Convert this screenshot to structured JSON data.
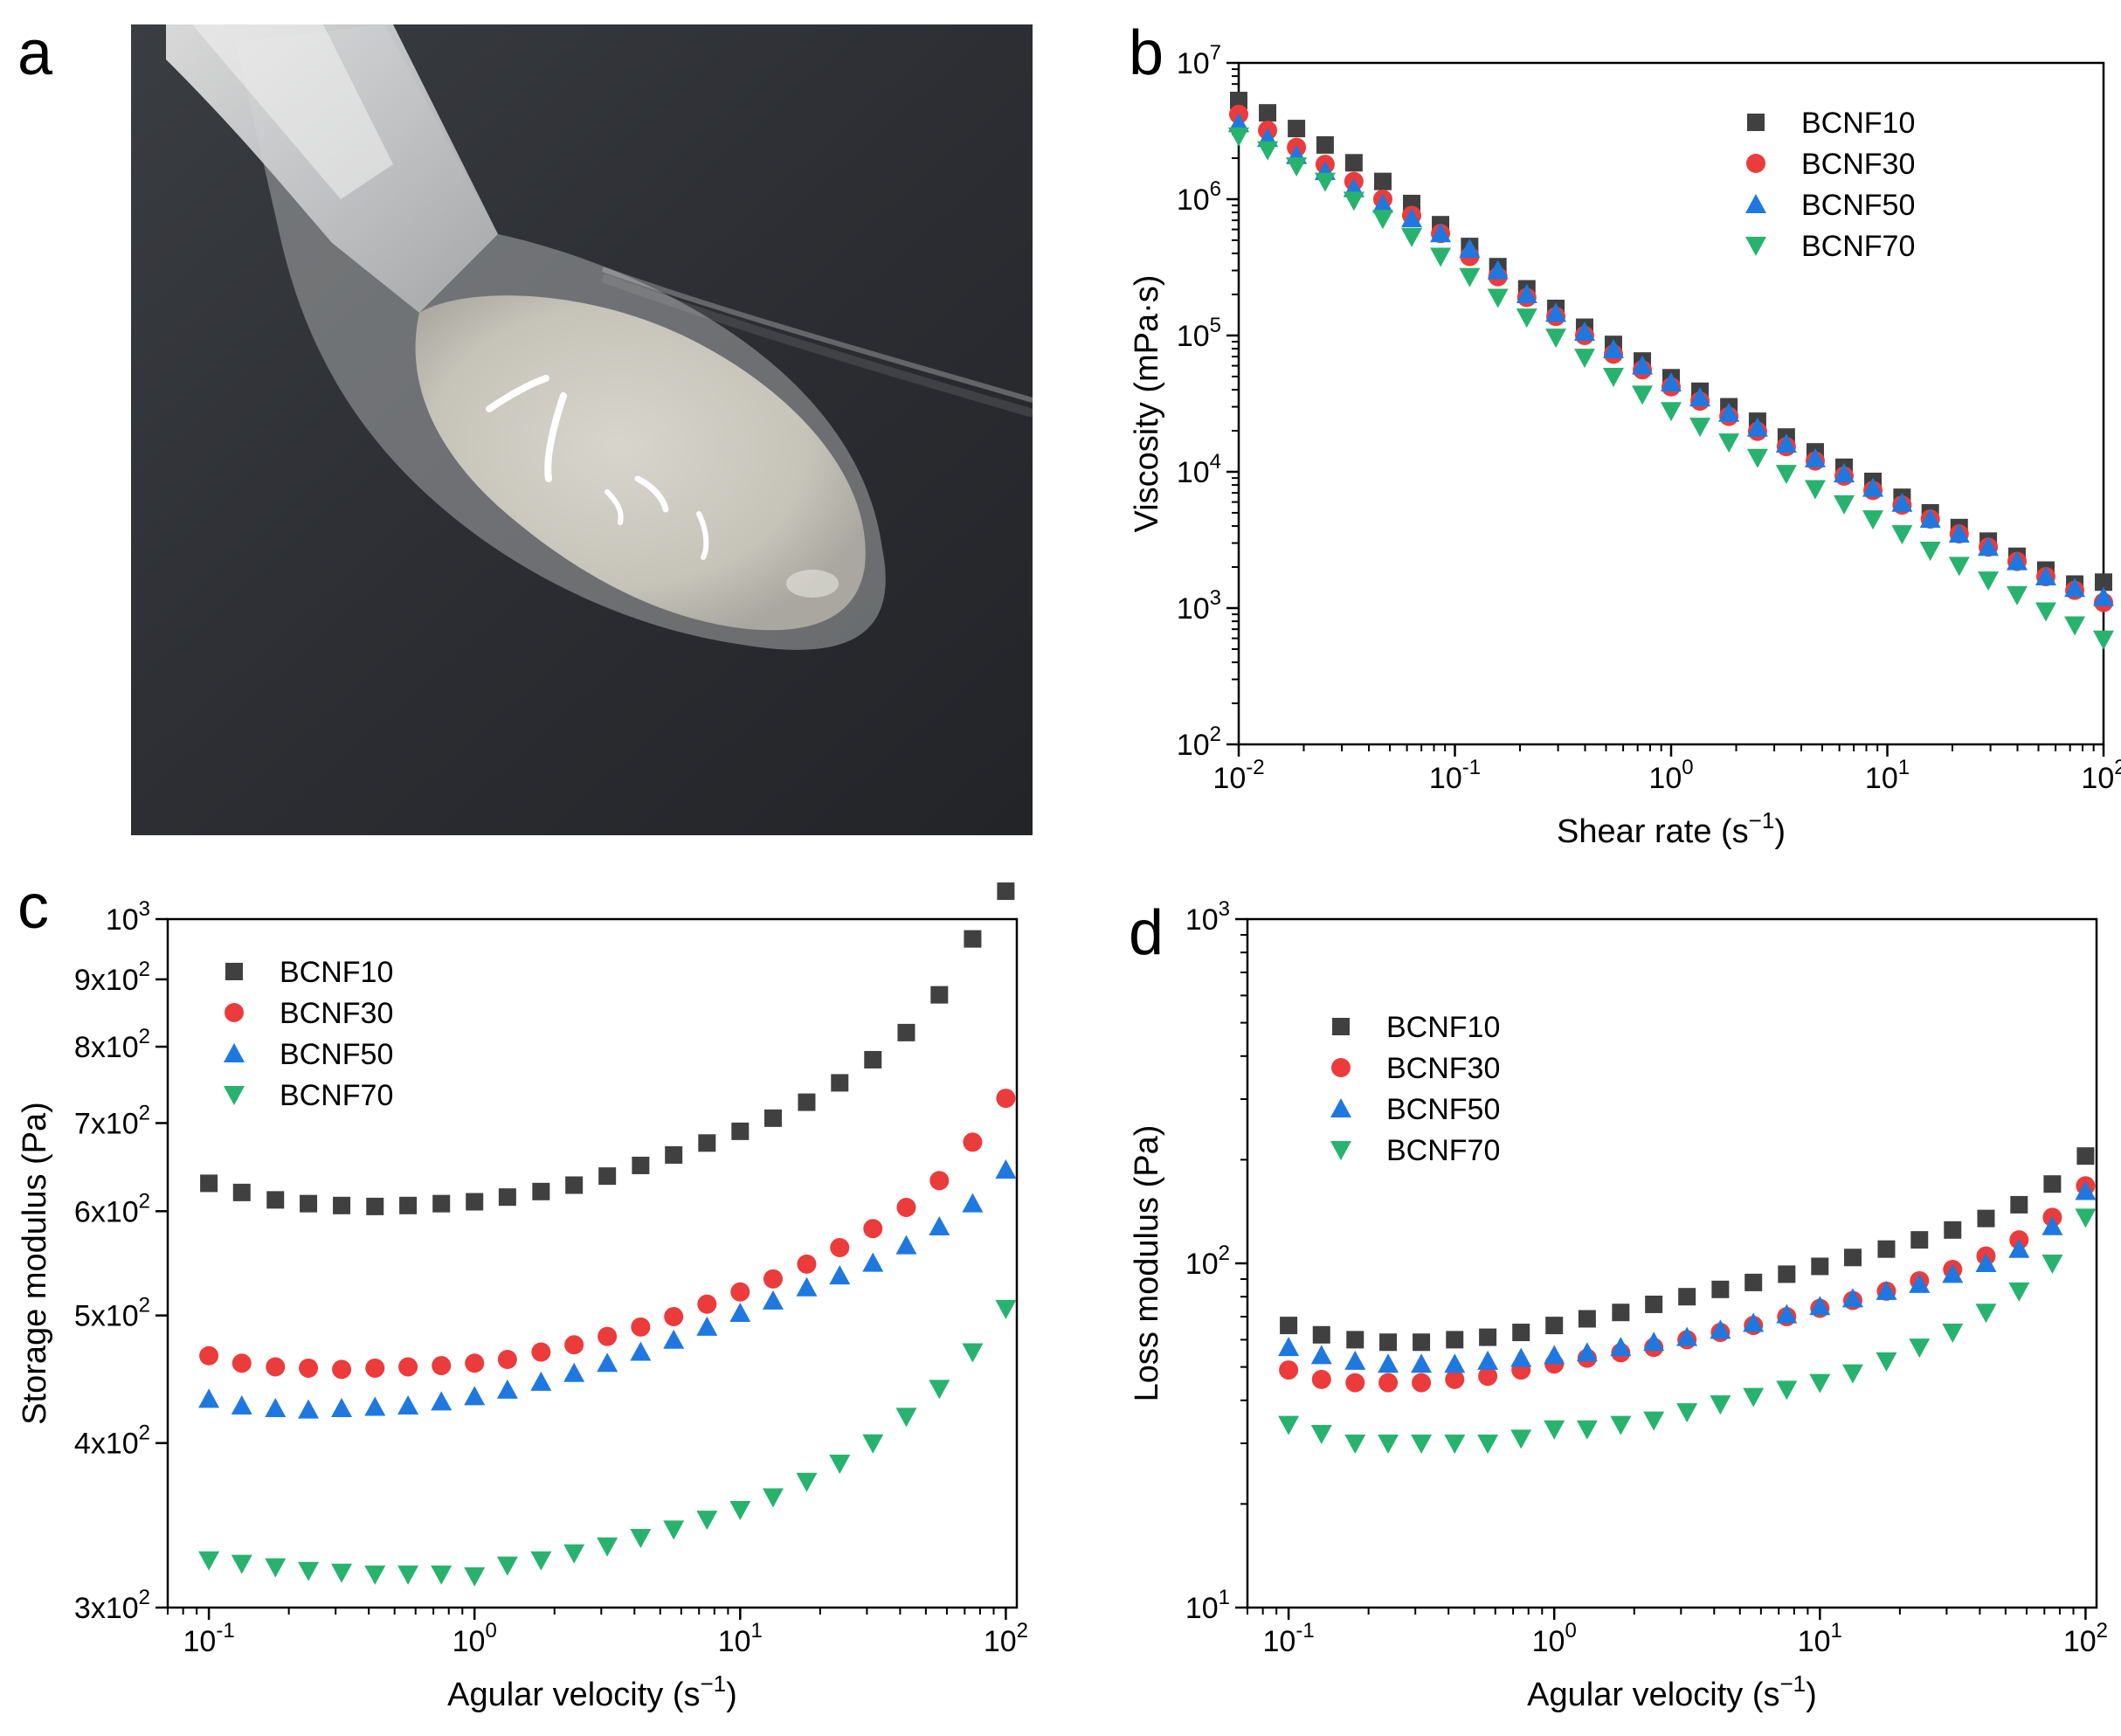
{
  "panels": {
    "a": {
      "letter": "a",
      "description_icon": "gel-on-spatula-photo"
    },
    "b": {
      "letter": "b"
    },
    "c": {
      "letter": "c"
    },
    "d": {
      "letter": "d"
    }
  },
  "colors": {
    "BCNF10": "#404040",
    "BCNF30": "#ec3b3b",
    "BCNF50": "#1f78e0",
    "BCNF70": "#27b36e",
    "photo_bg": "#2b2d31",
    "gel": "#cfccc2"
  },
  "markers": {
    "BCNF10": "square",
    "BCNF30": "circle",
    "BCNF50": "triangle-up",
    "BCNF70": "triangle-down"
  },
  "chart_data": [
    {
      "id": "b",
      "type": "scatter",
      "xscale": "log",
      "yscale": "log",
      "xlabel": "Shear rate (s",
      "xlabel_sup": "−1",
      "xlabel_end": ")",
      "ylabel": "Viscosity (mPa·s)",
      "xlim": [
        0.01,
        100
      ],
      "ylim": [
        100,
        10000000
      ],
      "xticks": [
        {
          "value": 0.01,
          "base": "10",
          "exp": "-2"
        },
        {
          "value": 0.1,
          "base": "10",
          "exp": "-1"
        },
        {
          "value": 1,
          "base": "10",
          "exp": "0"
        },
        {
          "value": 10,
          "base": "10",
          "exp": "1"
        },
        {
          "value": 100,
          "base": "10",
          "exp": "2"
        }
      ],
      "yticks": [
        {
          "value": 100,
          "base": "10",
          "exp": "2"
        },
        {
          "value": 1000,
          "base": "10",
          "exp": "3"
        },
        {
          "value": 10000,
          "base": "10",
          "exp": "4"
        },
        {
          "value": 100000,
          "base": "10",
          "exp": "5"
        },
        {
          "value": 1000000,
          "base": "10",
          "exp": "6"
        },
        {
          "value": 10000000,
          "base": "10",
          "exp": "7"
        }
      ],
      "legend": {
        "position": "top-right"
      },
      "x": [
        0.01,
        0.0136,
        0.0185,
        0.0251,
        0.0341,
        0.0464,
        0.0631,
        0.0858,
        0.117,
        0.158,
        0.215,
        0.293,
        0.398,
        0.541,
        0.736,
        1.0,
        1.36,
        1.85,
        2.51,
        3.41,
        4.64,
        6.31,
        8.58,
        11.7,
        15.8,
        21.5,
        29.3,
        39.8,
        54.1,
        73.6,
        100
      ],
      "series": [
        {
          "name": "BCNF10",
          "values": [
            5300000,
            4300000,
            3300000,
            2500000,
            1850000,
            1350000,
            930000,
            650000,
            450000,
            320000,
            220000,
            158000,
            115000,
            86000,
            65000,
            49000,
            39000,
            30000,
            23500,
            18000,
            14000,
            10800,
            8500,
            6500,
            5000,
            3900,
            3100,
            2400,
            1900,
            1500,
            1550
          ]
        },
        {
          "name": "BCNF30",
          "values": [
            4200000,
            3200000,
            2400000,
            1800000,
            1350000,
            1000000,
            760000,
            560000,
            380000,
            270000,
            190000,
            138000,
            100000,
            73000,
            56000,
            42000,
            33000,
            25500,
            19800,
            15300,
            12000,
            9300,
            7300,
            5700,
            4500,
            3500,
            2800,
            2200,
            1700,
            1350,
            1100
          ]
        },
        {
          "name": "BCNF50",
          "values": [
            3600000,
            2800000,
            2100000,
            1600000,
            1200000,
            920000,
            720000,
            560000,
            430000,
            300000,
            200000,
            146000,
            106000,
            79000,
            60000,
            45000,
            35000,
            27000,
            21000,
            16000,
            12500,
            9700,
            7600,
            5900,
            4500,
            3500,
            2800,
            2200,
            1700,
            1400,
            1200
          ]
        },
        {
          "name": "BCNF70",
          "values": [
            2900000,
            2300000,
            1750000,
            1350000,
            980000,
            720000,
            530000,
            380000,
            270000,
            190000,
            136000,
            97000,
            69000,
            50000,
            37000,
            28000,
            21500,
            16500,
            12700,
            9700,
            7500,
            5800,
            4500,
            3500,
            2650,
            2050,
            1600,
            1250,
            950,
            750,
            590
          ]
        }
      ]
    },
    {
      "id": "c",
      "type": "scatter",
      "xscale": "log",
      "yscale": "log",
      "xlabel": "Agular velocity (s",
      "xlabel_sup": "−1",
      "xlabel_end": ")",
      "ylabel": "Storage modulus (Pa)",
      "xlim": [
        0.07,
        110
      ],
      "ylim": [
        300,
        1000
      ],
      "xticks": [
        {
          "value": 0.1,
          "base": "10",
          "exp": "-1"
        },
        {
          "value": 1,
          "base": "10",
          "exp": "0"
        },
        {
          "value": 10,
          "base": "10",
          "exp": "1"
        },
        {
          "value": 100,
          "base": "10",
          "exp": "2"
        }
      ],
      "yticks": [
        {
          "value": 300,
          "base": "3x10",
          "exp": "2"
        },
        {
          "value": 400,
          "base": "4x10",
          "exp": "2"
        },
        {
          "value": 500,
          "base": "5x10",
          "exp": "2"
        },
        {
          "value": 600,
          "base": "6x10",
          "exp": "2"
        },
        {
          "value": 700,
          "base": "7x10",
          "exp": "2"
        },
        {
          "value": 800,
          "base": "8x10",
          "exp": "2"
        },
        {
          "value": 900,
          "base": "9x10",
          "exp": "2"
        },
        {
          "value": 1000,
          "base": "10",
          "exp": "3"
        }
      ],
      "legend": {
        "position": "top-left"
      },
      "x": [
        0.1,
        0.133,
        0.178,
        0.237,
        0.316,
        0.422,
        0.562,
        0.75,
        1.0,
        1.33,
        1.78,
        2.37,
        3.16,
        4.22,
        5.62,
        7.5,
        10,
        13.3,
        17.8,
        23.7,
        31.6,
        42.2,
        56.2,
        75,
        100
      ],
      "series": [
        {
          "name": "BCNF10",
          "values": [
            630,
            620,
            612,
            608,
            606,
            605,
            606,
            608,
            610,
            615,
            621,
            628,
            638,
            650,
            662,
            676,
            690,
            706,
            726,
            751,
            782,
            820,
            876,
            966,
            1050
          ]
        },
        {
          "name": "BCNF30",
          "values": [
            466,
            460,
            457,
            456,
            455,
            456,
            457,
            458,
            460,
            463,
            469,
            475,
            482,
            490,
            499,
            510,
            521,
            533,
            547,
            563,
            582,
            604,
            633,
            677,
            731
          ]
        },
        {
          "name": "BCNF50",
          "values": [
            432,
            427,
            425,
            424,
            425,
            426,
            427,
            430,
            434,
            439,
            445,
            452,
            460,
            469,
            479,
            490,
            502,
            513,
            525,
            536,
            548,
            565,
            584,
            608,
            645
          ]
        },
        {
          "name": "BCNF70",
          "values": [
            326,
            324,
            322,
            320,
            319,
            318,
            318,
            318,
            317,
            323,
            326,
            330,
            334,
            339,
            344,
            350,
            356,
            364,
            374,
            386,
            400,
            419,
            440,
            469,
            506
          ]
        }
      ]
    },
    {
      "id": "d",
      "type": "scatter",
      "xscale": "log",
      "yscale": "log",
      "xlabel": "Agular velocity (s",
      "xlabel_sup": "−1",
      "xlabel_end": ")",
      "ylabel": "Loss modulus (Pa)",
      "xlim": [
        0.07,
        110
      ],
      "ylim": [
        10,
        1000
      ],
      "xticks": [
        {
          "value": 0.1,
          "base": "10",
          "exp": "-1"
        },
        {
          "value": 1,
          "base": "10",
          "exp": "0"
        },
        {
          "value": 10,
          "base": "10",
          "exp": "1"
        },
        {
          "value": 100,
          "base": "10",
          "exp": "2"
        }
      ],
      "yticks": [
        {
          "value": 10,
          "base": "10",
          "exp": "1"
        },
        {
          "value": 100,
          "base": "10",
          "exp": "2"
        },
        {
          "value": 1000,
          "base": "10",
          "exp": "3"
        }
      ],
      "legend": {
        "position": "top-left"
      },
      "x": [
        0.1,
        0.133,
        0.178,
        0.237,
        0.316,
        0.422,
        0.562,
        0.75,
        1.0,
        1.33,
        1.78,
        2.37,
        3.16,
        4.22,
        5.62,
        7.5,
        10,
        13.3,
        17.8,
        23.7,
        31.6,
        42.2,
        56.2,
        75,
        100
      ],
      "series": [
        {
          "name": "BCNF10",
          "values": [
            66,
            62,
            60,
            59,
            59,
            60,
            61,
            63,
            66,
            69,
            72,
            76,
            80,
            84,
            88,
            93,
            98,
            104,
            110,
            117,
            125,
            135,
            148,
            170,
            205
          ]
        },
        {
          "name": "BCNF30",
          "values": [
            49,
            46,
            45,
            45,
            45,
            46,
            47,
            49,
            51,
            53,
            55,
            57,
            60,
            63,
            66,
            70,
            74,
            78,
            83,
            89,
            96,
            105,
            117,
            136,
            168
          ]
        },
        {
          "name": "BCNF50",
          "values": [
            57,
            54,
            52,
            51,
            51,
            51,
            52,
            53,
            54,
            55,
            57,
            59,
            61,
            64,
            67,
            71,
            75,
            79,
            83,
            87,
            93,
            100,
            110,
            128,
            162
          ]
        },
        {
          "name": "BCNF70",
          "values": [
            34,
            32,
            30,
            30,
            30,
            30,
            30,
            31,
            33,
            33,
            34,
            35,
            37,
            39,
            41,
            43,
            45,
            48,
            52,
            57,
            63,
            72,
            83,
            100,
            136
          ]
        }
      ]
    }
  ]
}
